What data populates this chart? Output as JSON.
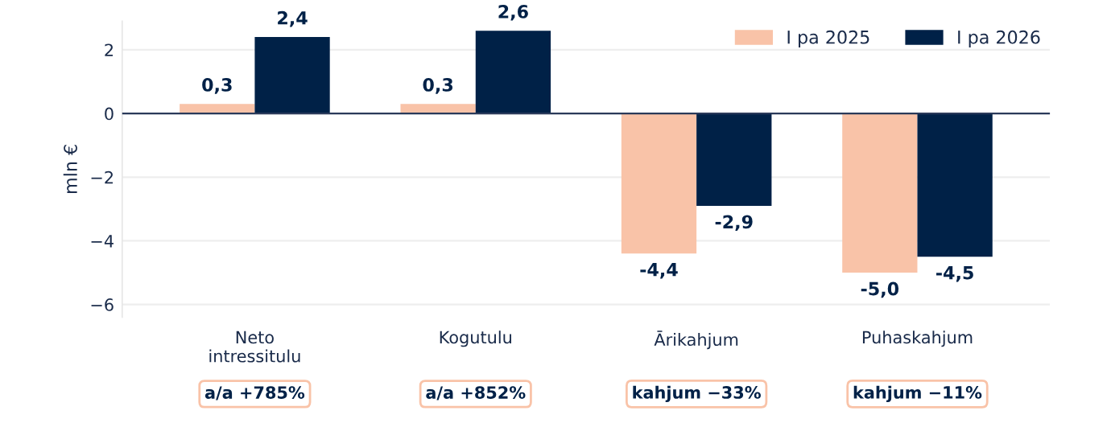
{
  "chart_data": {
    "type": "bar",
    "ylabel": "mln €",
    "categories": [
      "Neto\nintressitulu",
      "Kogutulu",
      "Ārikahjum",
      "Puhaskahjum"
    ],
    "series": [
      {
        "name": "I pa 2025",
        "color": "#f9c3a8",
        "values": [
          0.3,
          0.3,
          -4.4,
          -5.0
        ],
        "value_labels": [
          "0,3",
          "0,3",
          "-4,4",
          "-5,0"
        ]
      },
      {
        "name": "I pa 2026",
        "color": "#002147",
        "values": [
          2.4,
          2.6,
          -2.9,
          -4.5
        ],
        "value_labels": [
          "2,4",
          "2,6",
          "-2,9",
          "-4,5"
        ]
      }
    ],
    "ylim": [
      -6.4,
      2.9
    ],
    "yticks": [
      {
        "value": -6,
        "label": "−6"
      },
      {
        "value": -4,
        "label": "−4"
      },
      {
        "value": -2,
        "label": "−2"
      },
      0,
      2
    ],
    "grid": "y",
    "legend": "top right",
    "annotations": [
      "a/a +785%",
      "a/a +852%",
      "kahjum −33%",
      "kahjum −11%"
    ]
  }
}
